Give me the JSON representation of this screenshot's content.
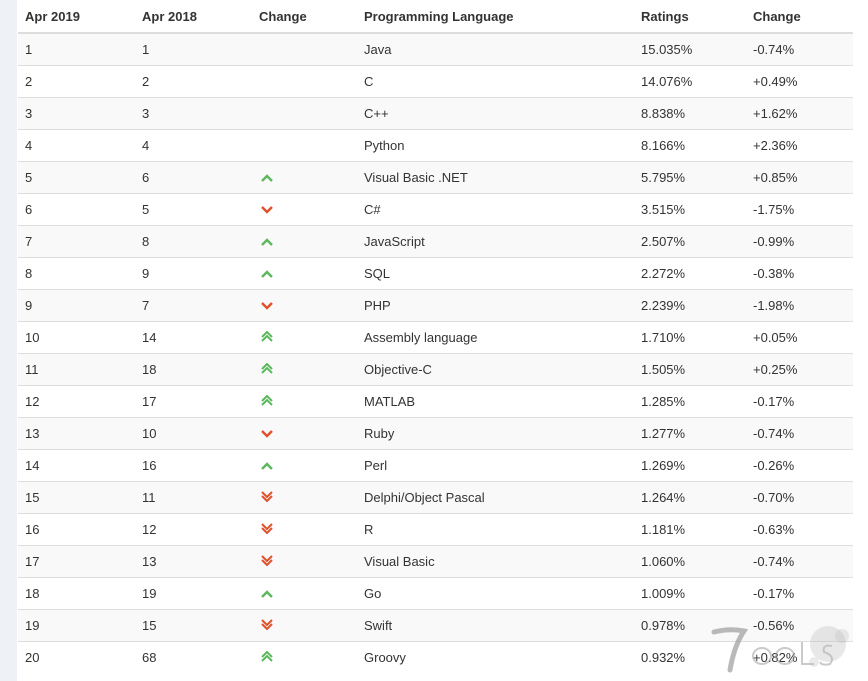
{
  "headers": [
    "Apr 2019",
    "Apr 2018",
    "Change",
    "Programming Language",
    "Ratings",
    "Change"
  ],
  "colors": {
    "up": "#5cb85c",
    "down": "#e0502a"
  },
  "rows": [
    {
      "apr2019": "1",
      "apr2018": "1",
      "trend": "none",
      "language": "Java",
      "rating": "15.035%",
      "change": "-0.74%"
    },
    {
      "apr2019": "2",
      "apr2018": "2",
      "trend": "none",
      "language": "C",
      "rating": "14.076%",
      "change": "+0.49%"
    },
    {
      "apr2019": "3",
      "apr2018": "3",
      "trend": "none",
      "language": "C++",
      "rating": "8.838%",
      "change": "+1.62%"
    },
    {
      "apr2019": "4",
      "apr2018": "4",
      "trend": "none",
      "language": "Python",
      "rating": "8.166%",
      "change": "+2.36%"
    },
    {
      "apr2019": "5",
      "apr2018": "6",
      "trend": "up",
      "language": "Visual Basic .NET",
      "rating": "5.795%",
      "change": "+0.85%"
    },
    {
      "apr2019": "6",
      "apr2018": "5",
      "trend": "down",
      "language": "C#",
      "rating": "3.515%",
      "change": "-1.75%"
    },
    {
      "apr2019": "7",
      "apr2018": "8",
      "trend": "up",
      "language": "JavaScript",
      "rating": "2.507%",
      "change": "-0.99%"
    },
    {
      "apr2019": "8",
      "apr2018": "9",
      "trend": "up",
      "language": "SQL",
      "rating": "2.272%",
      "change": "-0.38%"
    },
    {
      "apr2019": "9",
      "apr2018": "7",
      "trend": "down",
      "language": "PHP",
      "rating": "2.239%",
      "change": "-1.98%"
    },
    {
      "apr2019": "10",
      "apr2018": "14",
      "trend": "double-up",
      "language": "Assembly language",
      "rating": "1.710%",
      "change": "+0.05%"
    },
    {
      "apr2019": "11",
      "apr2018": "18",
      "trend": "double-up",
      "language": "Objective-C",
      "rating": "1.505%",
      "change": "+0.25%"
    },
    {
      "apr2019": "12",
      "apr2018": "17",
      "trend": "double-up",
      "language": "MATLAB",
      "rating": "1.285%",
      "change": "-0.17%"
    },
    {
      "apr2019": "13",
      "apr2018": "10",
      "trend": "down",
      "language": "Ruby",
      "rating": "1.277%",
      "change": "-0.74%"
    },
    {
      "apr2019": "14",
      "apr2018": "16",
      "trend": "up",
      "language": "Perl",
      "rating": "1.269%",
      "change": "-0.26%"
    },
    {
      "apr2019": "15",
      "apr2018": "11",
      "trend": "double-down",
      "language": "Delphi/Object Pascal",
      "rating": "1.264%",
      "change": "-0.70%"
    },
    {
      "apr2019": "16",
      "apr2018": "12",
      "trend": "double-down",
      "language": "R",
      "rating": "1.181%",
      "change": "-0.63%"
    },
    {
      "apr2019": "17",
      "apr2018": "13",
      "trend": "double-down",
      "language": "Visual Basic",
      "rating": "1.060%",
      "change": "-0.74%"
    },
    {
      "apr2019": "18",
      "apr2018": "19",
      "trend": "up",
      "language": "Go",
      "rating": "1.009%",
      "change": "-0.17%"
    },
    {
      "apr2019": "19",
      "apr2018": "15",
      "trend": "double-down",
      "language": "Swift",
      "rating": "0.978%",
      "change": "-0.56%"
    },
    {
      "apr2019": "20",
      "apr2018": "68",
      "trend": "double-up",
      "language": "Groovy",
      "rating": "0.932%",
      "change": "+0.82%"
    }
  ],
  "watermark": "7OOLS"
}
